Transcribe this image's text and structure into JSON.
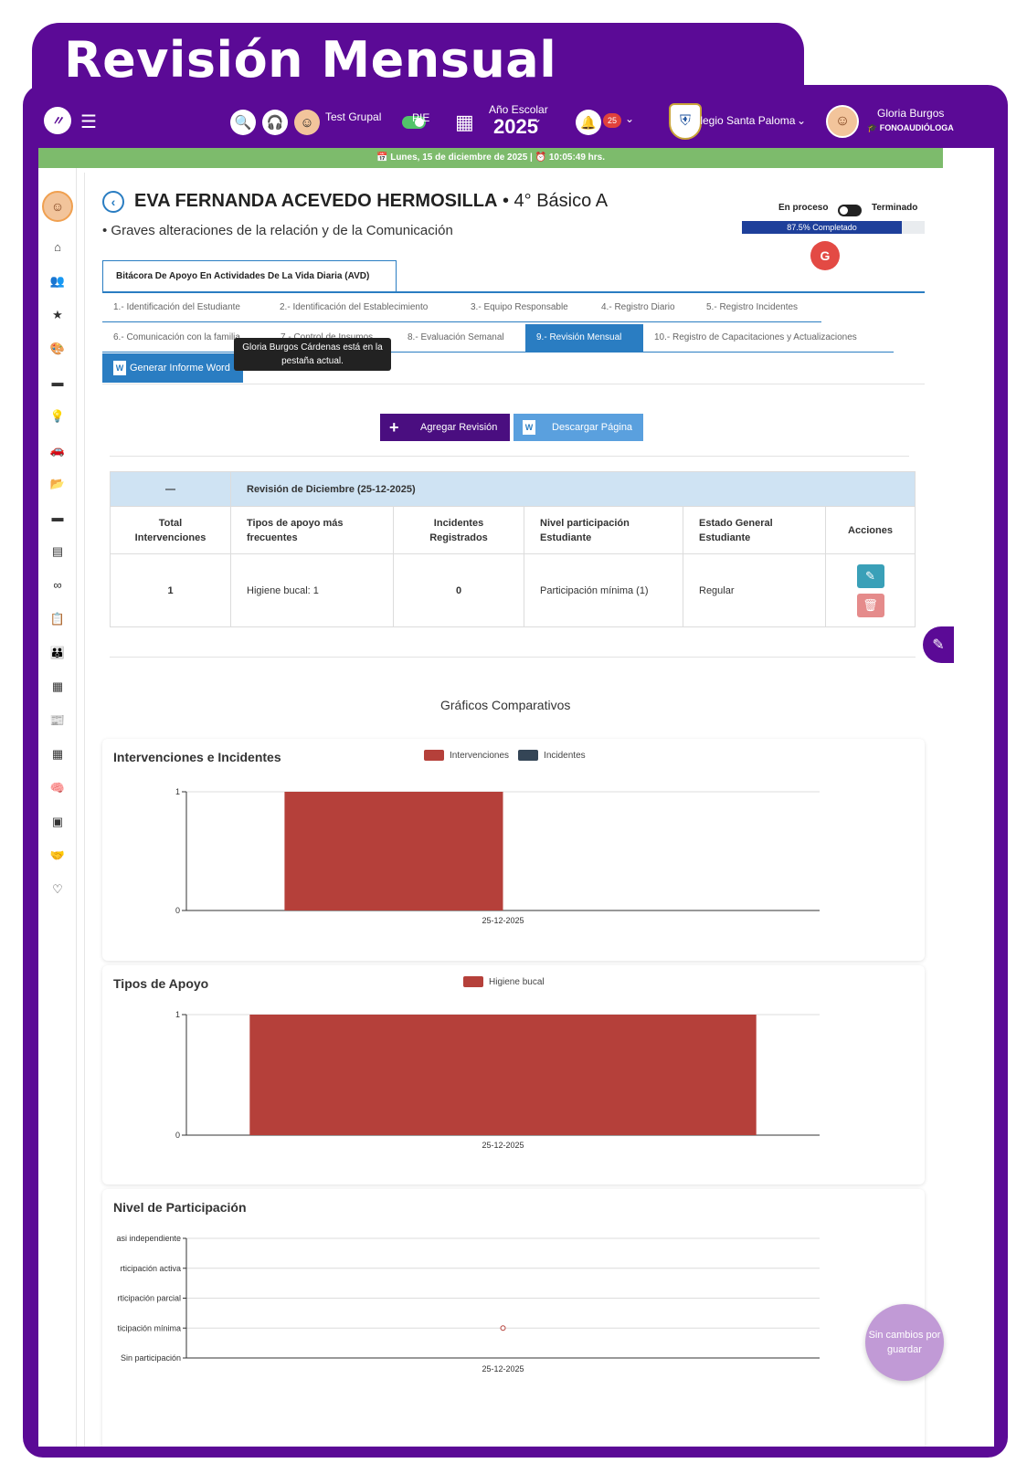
{
  "page_title": "Revisión Mensual",
  "topnav": {
    "grupal_label": "Test Grupal",
    "pie_label": "PIE",
    "year_label": "Año Escolar",
    "year_value": "2025",
    "notif_count": "25",
    "school": "Colegio Santa Paloma",
    "user_name": "Gloria Burgos",
    "user_role": "FONOAUDIÓLOGA"
  },
  "datebar": "📅 Lunes, 15 de diciembre de 2025 | ⏰ 10:05:49 hrs.",
  "student": {
    "name": "EVA FERNANDA ACEVEDO HERMOSILLA",
    "course": " • 4° Básico A",
    "diagnosis": "• Graves alteraciones de la relación y de la Comunicación"
  },
  "status": {
    "in_process": "En proceso",
    "finished": "Terminado",
    "progress_pct": 87.5,
    "progress_label": "87.5% Completado",
    "avatar_letter": "G"
  },
  "main_tab": "Bitácora De Apoyo En Actividades De La Vida Diaria (AVD)",
  "subtabs_row1": [
    "1.- Identificación del Estudiante",
    "2.- Identificación del Establecimiento",
    "3.- Equipo Responsable",
    "4.- Registro Diario",
    "5.- Registro Incidentes"
  ],
  "subtabs_row2": [
    "6.- Comunicación con la familia",
    "7.- Control de Insumos",
    "8.- Evaluación Semanal",
    "9.- Revisión Mensual",
    "10.- Registro de Capacitaciones y Actualizaciones"
  ],
  "word_button": "Generar Informe Word",
  "tooltip": "Gloria Burgos Cárdenas está en la pestaña actual.",
  "buttons": {
    "add_review": "Agregar Revisión",
    "download": "Descargar Página"
  },
  "review": {
    "collapse_symbol": "—",
    "title": "Revisión de Diciembre (25-12-2025)",
    "columns": [
      "Total Intervenciones",
      "Tipos de apoyo más frecuentes",
      "Incidentes Registrados",
      "Nivel participación Estudiante",
      "Estado General Estudiante",
      "Acciones"
    ],
    "row": [
      "1",
      "Higiene bucal: 1",
      "0",
      "Participación mínima (1)",
      "Regular"
    ]
  },
  "charts_title": "Gráficos Comparativos",
  "chart_data": [
    {
      "type": "bar",
      "title": "Intervenciones e Incidentes",
      "categories": [
        "25-12-2025"
      ],
      "series": [
        {
          "name": "Intervenciones",
          "values": [
            1
          ],
          "color": "#b5403a"
        },
        {
          "name": "Incidentes",
          "values": [
            0
          ],
          "color": "#344556"
        }
      ],
      "ylim": [
        0,
        1
      ],
      "yticks": [
        "0",
        "1"
      ]
    },
    {
      "type": "bar",
      "title": "Tipos de Apoyo",
      "categories": [
        "25-12-2025"
      ],
      "series": [
        {
          "name": "Higiene bucal",
          "values": [
            1
          ],
          "color": "#b5403a"
        }
      ],
      "ylim": [
        0,
        1
      ],
      "yticks": [
        "0",
        "1"
      ]
    },
    {
      "type": "scatter",
      "title": "Nivel de Participación",
      "categories": [
        "25-12-2025"
      ],
      "y_levels": [
        "Sin participación",
        "ticipación mínima",
        "rticipación parcial",
        "rticipación activa",
        "asi independiente"
      ],
      "series": [
        {
          "values": [
            1
          ],
          "color": "#b5403a"
        }
      ]
    }
  ],
  "fab": {
    "save_text": "Sin cambios por guardar"
  }
}
